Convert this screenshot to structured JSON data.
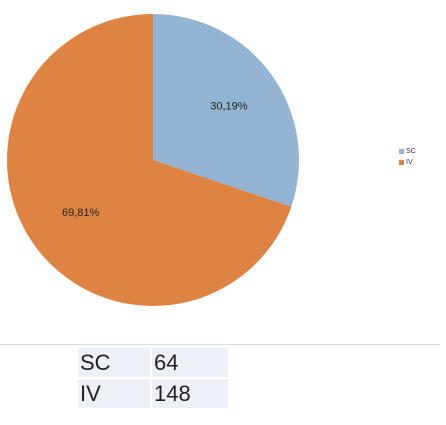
{
  "chart_data": {
    "type": "pie",
    "categories": [
      "SC",
      "IV"
    ],
    "values": [
      30.19,
      69.81
    ],
    "value_labels": [
      "30,19%",
      "69,81%"
    ],
    "colors": [
      "#93b4d3",
      "#df8343"
    ],
    "legend": [
      "SC",
      "IV"
    ],
    "legend_position": "right",
    "title": ""
  },
  "table": {
    "rows": [
      {
        "label": "SC",
        "value": "64"
      },
      {
        "label": "IV",
        "value": "148"
      }
    ]
  }
}
